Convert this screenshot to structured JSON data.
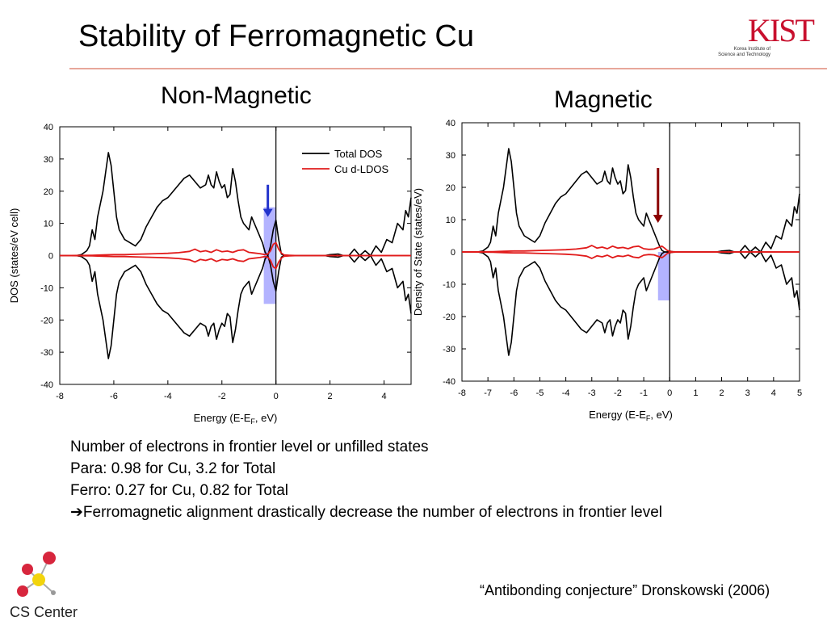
{
  "slide": {
    "title": "Stability of Ferromagnetic Cu",
    "logo_text": "KIST",
    "logo_sub_line1": "Korea Institute of",
    "logo_sub_line2": "Science and Technology",
    "footer_org": "CS Center",
    "citation": "“Antibonding conjecture” Dronskowski (2006)",
    "notes": [
      "Number of electrons in frontier level or unfilled states",
      "Para: 0.98 for Cu, 3.2 for Total",
      "Ferro: 0.27 for Cu, 0.82 for Total"
    ],
    "conclusion_arrow": "➔",
    "conclusion": "Ferromagnetic alignment drastically decrease the number of electrons in frontier level",
    "colors": {
      "accent_rule": "#e8a79a",
      "logo": "#c8102e",
      "total": "#000000",
      "cu": "#e11b1b",
      "arrow_nm": "#2233cc",
      "arrow_m": "#8b0000",
      "band": "#9999ff"
    }
  },
  "chart_data": [
    {
      "type": "line",
      "panel_title": "Non-Magnetic",
      "xlabel_main": "Energy (E-E",
      "xlabel_sub": "F",
      "xlabel_tail": ", eV)",
      "ylabel": "DOS (states/eV cell)",
      "xlim": [
        -8,
        5
      ],
      "ylim": [
        -40,
        40
      ],
      "xticks": [
        -8,
        -6,
        -4,
        -2,
        0,
        2,
        4
      ],
      "xtick_labels": [
        "-8",
        "-6",
        "-4",
        "-2",
        "0",
        "2",
        "4"
      ],
      "yticks": [
        -40,
        -30,
        -20,
        -10,
        0,
        10,
        20,
        30,
        40
      ],
      "ytick_labels": [
        "-40",
        "-30",
        "-20",
        "-10",
        "0",
        "10",
        "20",
        "30",
        "40"
      ],
      "fermi_level": 0,
      "highlight": {
        "x": [
          -0.45,
          0.0
        ],
        "y": [
          -15,
          15
        ]
      },
      "arrow": {
        "x": -0.3,
        "y_from": 22,
        "y_to": 12
      },
      "legend": {
        "position": "top-right",
        "entries": [
          "Total DOS",
          "Cu d-LDOS"
        ]
      },
      "series": [
        {
          "name": "Total DOS",
          "x": [
            -8,
            -7.4,
            -7.2,
            -7.0,
            -6.9,
            -6.8,
            -6.7,
            -6.6,
            -6.4,
            -6.3,
            -6.2,
            -6.1,
            -6.0,
            -5.9,
            -5.8,
            -5.6,
            -5.4,
            -5.2,
            -5.0,
            -4.8,
            -4.6,
            -4.4,
            -4.2,
            -4.0,
            -3.8,
            -3.6,
            -3.4,
            -3.2,
            -3.0,
            -2.8,
            -2.6,
            -2.5,
            -2.4,
            -2.3,
            -2.2,
            -2.1,
            -2.0,
            -1.9,
            -1.8,
            -1.7,
            -1.6,
            -1.5,
            -1.4,
            -1.3,
            -1.2,
            -1.1,
            -1.0,
            -0.9,
            -0.8,
            -0.7,
            -0.6,
            -0.5,
            -0.4,
            -0.3,
            -0.2,
            -0.1,
            0.0,
            0.1,
            0.2,
            0.3,
            0.5,
            0.8,
            1.0,
            1.3,
            1.6,
            1.8,
            2.0,
            2.3,
            2.5,
            2.7,
            2.9,
            3.1,
            3.3,
            3.5,
            3.7,
            3.9,
            4.1,
            4.3,
            4.5,
            4.7,
            4.8,
            4.9,
            5.0
          ],
          "y": [
            0,
            0,
            0.3,
            1.5,
            3,
            8,
            5,
            12,
            20,
            26,
            32,
            28,
            20,
            12,
            8,
            5,
            4,
            3,
            5,
            9,
            12,
            15,
            17,
            18,
            20,
            22,
            24,
            25,
            23,
            21,
            22,
            25,
            22,
            21,
            26,
            23,
            21,
            22,
            18,
            19,
            27,
            23,
            17,
            12,
            10,
            9,
            8,
            12,
            10,
            8,
            6,
            4,
            1,
            0,
            3,
            8,
            11,
            5,
            0.5,
            0,
            0,
            0,
            0,
            0,
            0,
            0,
            0.3,
            0.5,
            0,
            0,
            2,
            0,
            1.5,
            0,
            3,
            1,
            5,
            4,
            10,
            8,
            14,
            12,
            18
          ]
        },
        {
          "name": "Cu d-LDOS",
          "x": [
            -8,
            -6.8,
            -6.4,
            -6.0,
            -5.6,
            -5.2,
            -4.8,
            -4.4,
            -4.0,
            -3.6,
            -3.2,
            -3.0,
            -2.8,
            -2.6,
            -2.4,
            -2.2,
            -2.0,
            -1.8,
            -1.6,
            -1.4,
            -1.2,
            -1.0,
            -0.8,
            -0.6,
            -0.4,
            -0.3,
            -0.2,
            -0.1,
            0.0,
            0.1,
            0.2,
            0.3,
            0.5,
            0.8,
            1.5,
            2.5,
            3.5,
            4.5,
            5.0
          ],
          "y": [
            0,
            0.1,
            0.2,
            0.3,
            0.3,
            0.4,
            0.5,
            0.6,
            0.7,
            0.9,
            1.3,
            2.0,
            1.2,
            1.5,
            1.0,
            1.8,
            1.2,
            1.4,
            1.0,
            1.6,
            1.8,
            1.0,
            0.8,
            0.6,
            0.3,
            0.5,
            1.5,
            3.5,
            4.0,
            2.0,
            0.8,
            0.2,
            0.1,
            0,
            0,
            0,
            0,
            0,
            0
          ]
        }
      ]
    },
    {
      "type": "line",
      "panel_title": "Magnetic",
      "xlabel_main": "Energy (E-E",
      "xlabel_sub": "F",
      "xlabel_tail": ", eV)",
      "ylabel": "Density of State (states/eV)",
      "xlim": [
        -8,
        5
      ],
      "ylim": [
        -40,
        40
      ],
      "xticks": [
        -8,
        -7,
        -6,
        -5,
        -4,
        -3,
        -2,
        -1,
        0,
        1,
        2,
        3,
        4,
        5
      ],
      "xtick_labels": [
        "-8",
        "-7",
        "-6",
        "-5",
        "-4",
        "-3",
        "-2",
        "-1",
        "0",
        "1",
        "2",
        "3",
        "4",
        "5"
      ],
      "yticks": [
        -40,
        -30,
        -20,
        -10,
        0,
        10,
        20,
        30,
        40
      ],
      "ytick_labels": [
        "-40",
        "-30",
        "-20",
        "-10",
        "0",
        "10",
        "20",
        "30",
        "40"
      ],
      "fermi_level": 0,
      "highlight": {
        "x": [
          -0.45,
          0.0
        ],
        "y": [
          -15,
          0
        ]
      },
      "arrow": {
        "x": -0.45,
        "y_from": 26,
        "y_to": 9
      },
      "series": [
        {
          "name": "Total DOS",
          "x": [
            -8,
            -7.4,
            -7.2,
            -7.0,
            -6.9,
            -6.8,
            -6.7,
            -6.6,
            -6.4,
            -6.3,
            -6.2,
            -6.1,
            -6.0,
            -5.9,
            -5.8,
            -5.6,
            -5.4,
            -5.2,
            -5.0,
            -4.8,
            -4.6,
            -4.4,
            -4.2,
            -4.0,
            -3.8,
            -3.6,
            -3.4,
            -3.2,
            -3.0,
            -2.8,
            -2.6,
            -2.5,
            -2.4,
            -2.3,
            -2.2,
            -2.1,
            -2.0,
            -1.9,
            -1.8,
            -1.7,
            -1.6,
            -1.5,
            -1.4,
            -1.3,
            -1.2,
            -1.1,
            -1.0,
            -0.9,
            -0.8,
            -0.7,
            -0.6,
            -0.5,
            -0.4,
            -0.3,
            -0.2,
            -0.1,
            0.0,
            0.1,
            0.2,
            0.3,
            0.5,
            0.8,
            1.0,
            1.3,
            1.6,
            1.8,
            2.0,
            2.3,
            2.5,
            2.7,
            2.9,
            3.1,
            3.3,
            3.5,
            3.7,
            3.9,
            4.1,
            4.3,
            4.5,
            4.7,
            4.8,
            4.9,
            5.0
          ],
          "y": [
            0,
            0,
            0.3,
            1.5,
            3,
            8,
            5,
            12,
            20,
            26,
            32,
            28,
            20,
            12,
            8,
            5,
            4,
            3,
            5,
            9,
            12,
            15,
            17,
            18,
            20,
            22,
            24,
            25,
            23,
            21,
            22,
            25,
            22,
            21,
            26,
            23,
            21,
            22,
            18,
            19,
            27,
            23,
            17,
            12,
            10,
            9,
            8,
            12,
            10,
            8,
            6,
            4,
            2,
            0.5,
            0,
            0,
            0.3,
            0.1,
            0,
            0,
            0,
            0,
            0,
            0,
            0,
            0,
            0.3,
            0.5,
            0,
            0,
            2,
            0,
            1.5,
            0,
            3,
            1,
            5,
            4,
            10,
            8,
            14,
            12,
            18
          ]
        },
        {
          "name": "Cu d-LDOS",
          "x": [
            -8,
            -6.8,
            -6.4,
            -6.0,
            -5.6,
            -5.2,
            -4.8,
            -4.4,
            -4.0,
            -3.6,
            -3.2,
            -3.0,
            -2.8,
            -2.6,
            -2.4,
            -2.2,
            -2.0,
            -1.8,
            -1.6,
            -1.4,
            -1.2,
            -1.0,
            -0.8,
            -0.6,
            -0.4,
            -0.3,
            -0.2,
            -0.1,
            0.0,
            0.1,
            0.2,
            0.3,
            0.5,
            0.8,
            1.5,
            2.5,
            3.5,
            4.5,
            5.0
          ],
          "y": [
            0,
            0.1,
            0.2,
            0.3,
            0.3,
            0.4,
            0.5,
            0.6,
            0.7,
            0.9,
            1.3,
            2.0,
            1.2,
            1.5,
            1.0,
            1.8,
            1.2,
            1.4,
            1.0,
            1.6,
            1.8,
            1.0,
            0.8,
            0.9,
            1.5,
            1.8,
            1.2,
            0.5,
            0.2,
            0.1,
            0.05,
            0,
            0,
            0,
            0,
            0,
            0,
            0,
            0
          ]
        }
      ]
    }
  ]
}
